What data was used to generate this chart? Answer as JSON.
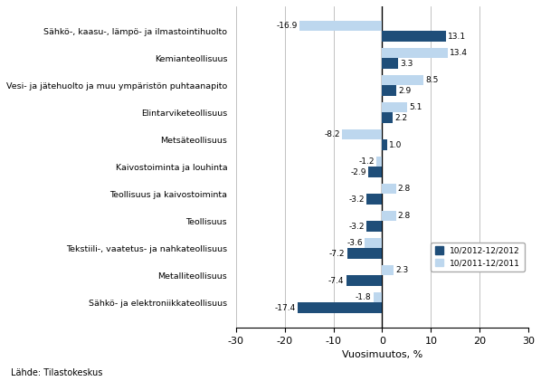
{
  "categories": [
    "Sähkö-, kaasu-, lämpö- ja ilmastointihuolto",
    "Kemianteollisuus",
    "Vesi- ja jätehuolto ja muu ympäristön puhtaanapito",
    "Elintarviketeollisuus",
    "Metsäteollisuus",
    "Kaivostoiminta ja louhinta",
    "Teollisuus ja kaivostoiminta",
    "Teollisuus",
    "Tekstiili-, vaatetus- ja nahkateollisuus",
    "Metalliteollisuus",
    "Sähkö- ja elektroniikkateollisuus"
  ],
  "series1_values": [
    13.1,
    3.3,
    2.9,
    2.2,
    1.0,
    -2.9,
    -3.2,
    -3.2,
    -7.2,
    -7.4,
    -17.4
  ],
  "series2_values": [
    -16.9,
    13.4,
    8.5,
    5.1,
    -8.2,
    -1.2,
    2.8,
    2.8,
    -3.6,
    2.3,
    -1.8
  ],
  "series1_color": "#1F4E79",
  "series2_color": "#BDD7EE",
  "series1_label": "10/2012-12/2012",
  "series2_label": "10/2011-12/2011",
  "xlabel": "Vuosimuutos, %",
  "xlim": [
    -30,
    30
  ],
  "xticks": [
    -30,
    -20,
    -10,
    0,
    10,
    20,
    30
  ],
  "source_text": "Lähde: Tilastokeskus",
  "bar_height": 0.38
}
